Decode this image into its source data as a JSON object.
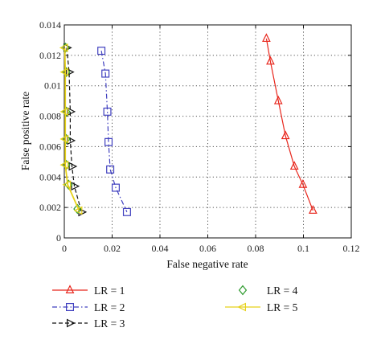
{
  "chart_data": {
    "type": "line",
    "title": "",
    "xlabel": "False negative rate",
    "ylabel": "False positive rate",
    "xlim": [
      0,
      0.12
    ],
    "ylim": [
      0,
      0.014
    ],
    "x_ticks": [
      "0",
      "0.02",
      "0.04",
      "0.06",
      "0.08",
      "0.1",
      "0.12"
    ],
    "y_ticks": [
      "0",
      "0.002",
      "0.004",
      "0.006",
      "0.008",
      "0.01",
      "0.012",
      "0.014"
    ],
    "grid": true,
    "legend_position": "bottom",
    "series": [
      {
        "name": "LR = 1",
        "color": "#e8261c",
        "marker": "triangle-up",
        "dash": "solid",
        "points": [
          [
            0.0845,
            0.0131
          ],
          [
            0.0862,
            0.0116
          ],
          [
            0.0895,
            0.009
          ],
          [
            0.0925,
            0.0067
          ],
          [
            0.0962,
            0.0047
          ],
          [
            0.0998,
            0.0035
          ],
          [
            0.104,
            0.0018
          ]
        ]
      },
      {
        "name": "LR = 2",
        "color": "#3f3fbf",
        "marker": "square",
        "dash": "dashdot",
        "points": [
          [
            0.0155,
            0.0123
          ],
          [
            0.0172,
            0.0108
          ],
          [
            0.018,
            0.0083
          ],
          [
            0.0185,
            0.0063
          ],
          [
            0.0192,
            0.0045
          ],
          [
            0.0215,
            0.0033
          ],
          [
            0.0262,
            0.0017
          ]
        ]
      },
      {
        "name": "LR = 3",
        "color": "#111111",
        "marker": "triangle-right",
        "dash": "dash",
        "points": [
          [
            0.001,
            0.0125
          ],
          [
            0.002,
            0.0109
          ],
          [
            0.0025,
            0.0083
          ],
          [
            0.0025,
            0.0064
          ],
          [
            0.0032,
            0.0047
          ],
          [
            0.0042,
            0.0034
          ],
          [
            0.0072,
            0.0017
          ]
        ]
      },
      {
        "name": "LR = 4",
        "color": "#2e9a2e",
        "marker": "diamond",
        "dash": "none",
        "points": [
          [
            0.0005,
            0.0125
          ],
          [
            0.0008,
            0.0109
          ],
          [
            0.0008,
            0.0083
          ],
          [
            0.0008,
            0.0065
          ],
          [
            0.0008,
            0.0048
          ],
          [
            0.0018,
            0.0035
          ],
          [
            0.0055,
            0.0019
          ]
        ]
      },
      {
        "name": "LR = 5",
        "color": "#e6d11a",
        "marker": "triangle-left",
        "dash": "solid",
        "points": [
          [
            0.0002,
            0.0125
          ],
          [
            0.0004,
            0.0109
          ],
          [
            0.0004,
            0.0083
          ],
          [
            0.0004,
            0.0065
          ],
          [
            0.0004,
            0.0048
          ],
          [
            0.0014,
            0.0035
          ],
          [
            0.0062,
            0.0018
          ]
        ]
      }
    ]
  }
}
